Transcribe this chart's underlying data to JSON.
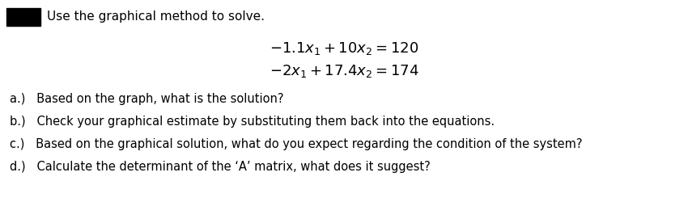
{
  "header": "Use the graphical method to solve.",
  "eq1": "$-1.1x_1 +10x_2 =120$",
  "eq2": "$-2x_1 +17.4x_2 =174$",
  "qa": "a.)   Based on the graph, what is the solution?",
  "qb": "b.)   Check your graphical estimate by substituting them back into the equations.",
  "qc": "c.)   Based on the graphical solution, what do you expect regarding the condition of the system?",
  "qd": "d.)   Calculate the determinant of the ‘A’ matrix, what does it suggest?",
  "box_color": "#000000",
  "header_fontsize": 11,
  "eq_fontsize": 13,
  "q_fontsize": 10.5,
  "bg_color": "#ffffff"
}
